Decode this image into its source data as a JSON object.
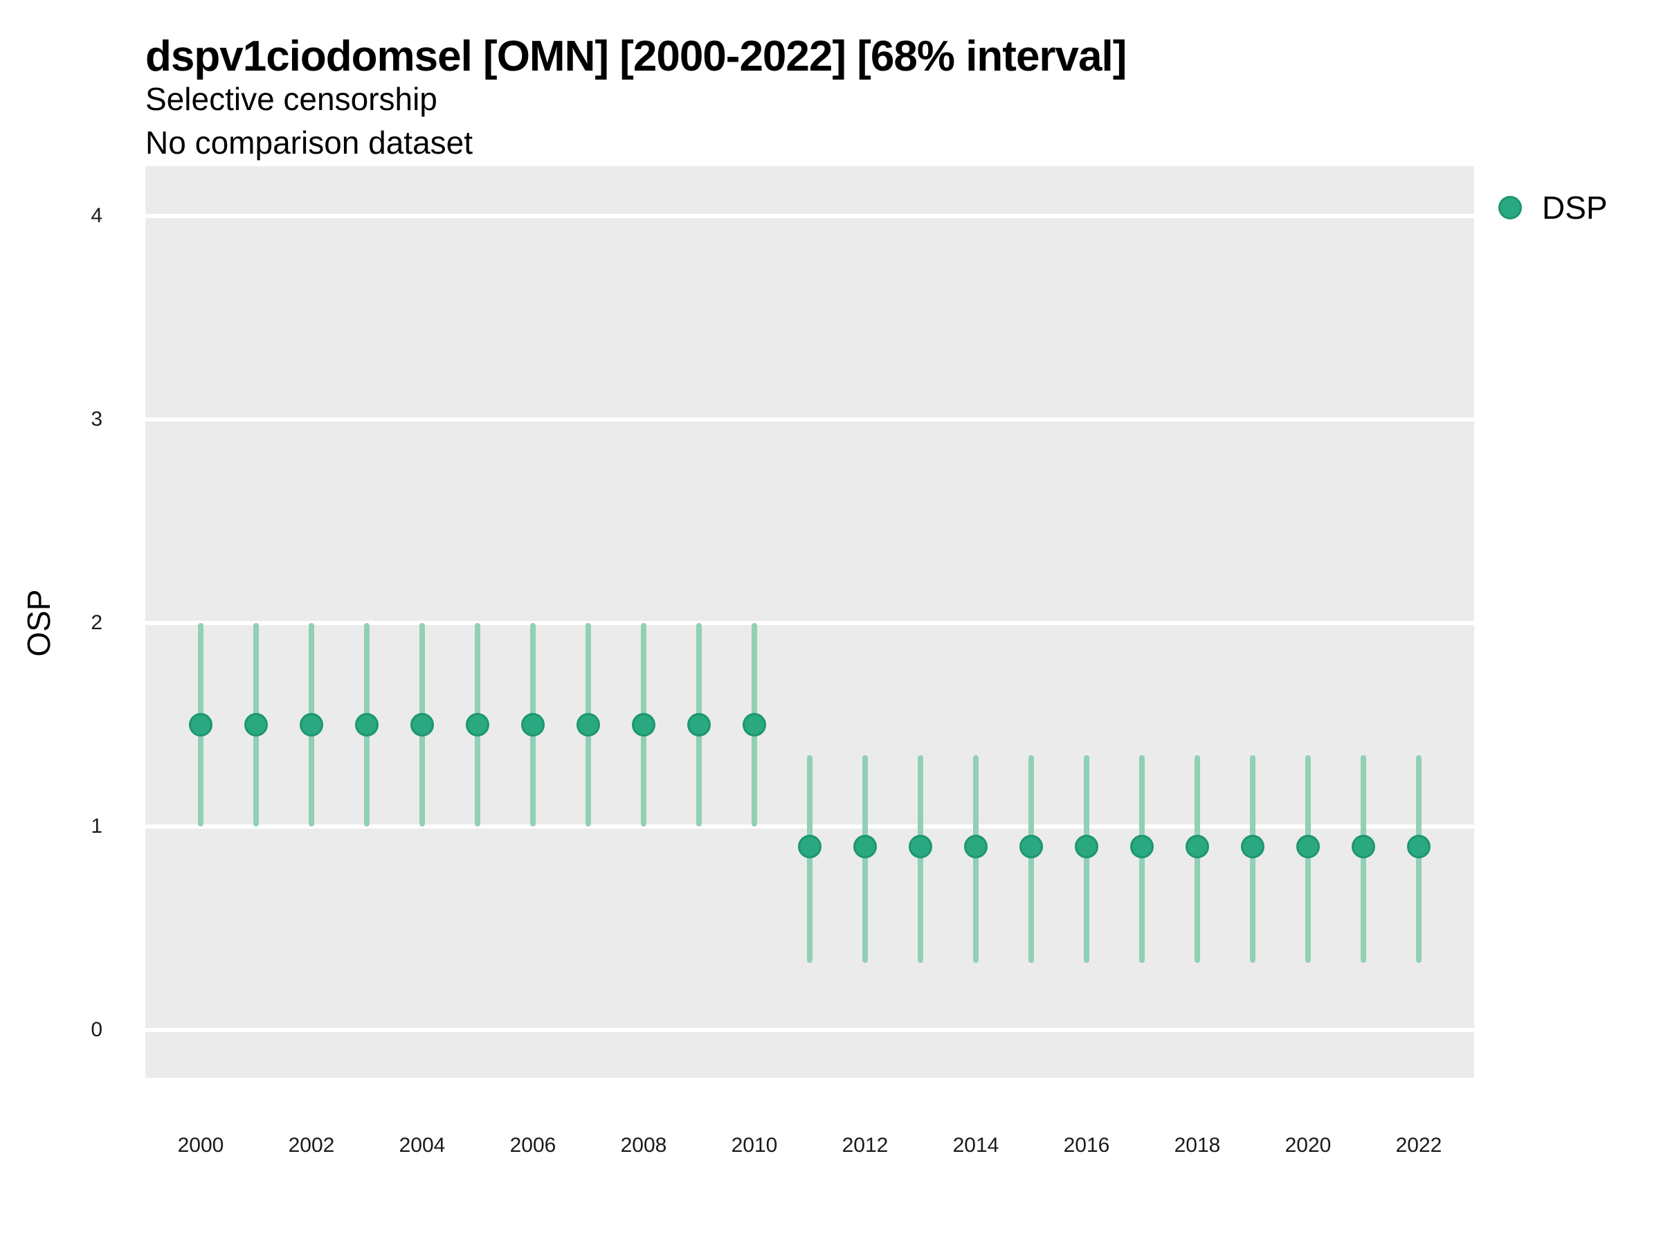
{
  "header": {
    "title": "dspv1ciodomsel [OMN] [2000-2022] [68% interval]",
    "subtitle": "Selective censorship",
    "note": "No comparison dataset"
  },
  "colors": {
    "panel_bg": "#EBEBEB",
    "gridline": "#FFFFFF",
    "bar": "#90D0B4",
    "dot_fill": "#2AA880",
    "dot_stroke": "#1D9670",
    "tick_text": "#1a1a1a",
    "text": "#000000"
  },
  "legend": {
    "position": "right",
    "items": [
      {
        "label": "DSP",
        "color": "#2AA880"
      }
    ]
  },
  "chart_data": {
    "type": "scatter",
    "title": "dspv1ciodomsel [OMN] [2000-2022] [68% interval]",
    "subtitle": "Selective censorship",
    "note": "No comparison dataset",
    "xlabel": "",
    "ylabel": "OSP",
    "interval": "68%",
    "grid": "horizontal-major-only",
    "legend_position": "right",
    "ylim": [
      -0.23,
      4.23
    ],
    "y_ticks": [
      0,
      1,
      2,
      3,
      4
    ],
    "x_ticks": [
      2000,
      2002,
      2004,
      2006,
      2008,
      2010,
      2012,
      2014,
      2016,
      2018,
      2020,
      2022
    ],
    "series": [
      {
        "name": "DSP",
        "points": [
          {
            "year": 2000,
            "value": 1.5,
            "lower": 1.0,
            "upper": 2.0
          },
          {
            "year": 2001,
            "value": 1.5,
            "lower": 1.0,
            "upper": 2.0
          },
          {
            "year": 2002,
            "value": 1.5,
            "lower": 1.0,
            "upper": 2.0
          },
          {
            "year": 2003,
            "value": 1.5,
            "lower": 1.0,
            "upper": 2.0
          },
          {
            "year": 2004,
            "value": 1.5,
            "lower": 1.0,
            "upper": 2.0
          },
          {
            "year": 2005,
            "value": 1.5,
            "lower": 1.0,
            "upper": 2.0
          },
          {
            "year": 2006,
            "value": 1.5,
            "lower": 1.0,
            "upper": 2.0
          },
          {
            "year": 2007,
            "value": 1.5,
            "lower": 1.0,
            "upper": 2.0
          },
          {
            "year": 2008,
            "value": 1.5,
            "lower": 1.0,
            "upper": 2.0
          },
          {
            "year": 2009,
            "value": 1.5,
            "lower": 1.0,
            "upper": 2.0
          },
          {
            "year": 2010,
            "value": 1.5,
            "lower": 1.0,
            "upper": 2.0
          },
          {
            "year": 2011,
            "value": 0.9,
            "lower": 0.33,
            "upper": 1.35
          },
          {
            "year": 2012,
            "value": 0.9,
            "lower": 0.33,
            "upper": 1.35
          },
          {
            "year": 2013,
            "value": 0.9,
            "lower": 0.33,
            "upper": 1.35
          },
          {
            "year": 2014,
            "value": 0.9,
            "lower": 0.33,
            "upper": 1.35
          },
          {
            "year": 2015,
            "value": 0.9,
            "lower": 0.33,
            "upper": 1.35
          },
          {
            "year": 2016,
            "value": 0.9,
            "lower": 0.33,
            "upper": 1.35
          },
          {
            "year": 2017,
            "value": 0.9,
            "lower": 0.33,
            "upper": 1.35
          },
          {
            "year": 2018,
            "value": 0.9,
            "lower": 0.33,
            "upper": 1.35
          },
          {
            "year": 2019,
            "value": 0.9,
            "lower": 0.33,
            "upper": 1.35
          },
          {
            "year": 2020,
            "value": 0.9,
            "lower": 0.33,
            "upper": 1.35
          },
          {
            "year": 2021,
            "value": 0.9,
            "lower": 0.33,
            "upper": 1.35
          },
          {
            "year": 2022,
            "value": 0.9,
            "lower": 0.33,
            "upper": 1.35
          }
        ]
      }
    ]
  }
}
